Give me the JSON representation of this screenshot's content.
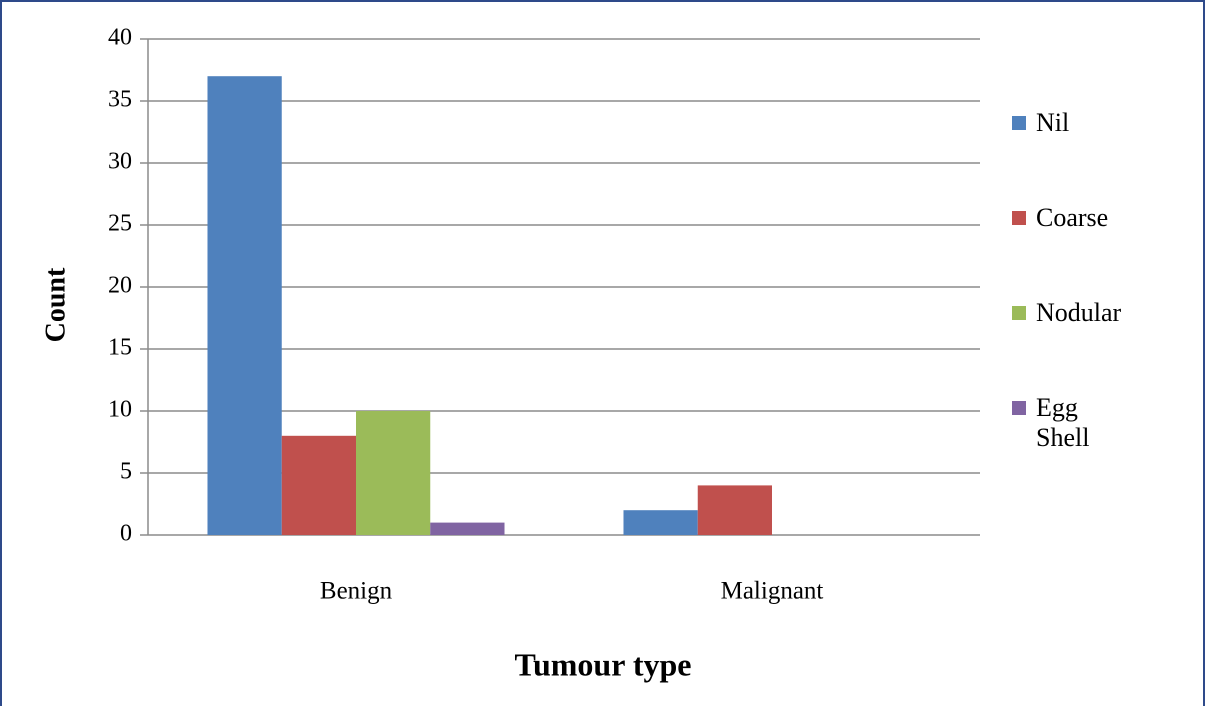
{
  "chart_data": {
    "type": "bar",
    "xlabel": "Tumour type",
    "ylabel": "Count",
    "categories": [
      "Benign",
      "Malignant"
    ],
    "series": [
      {
        "name": "Nil",
        "color": "#4f81bd",
        "values": [
          37,
          2
        ]
      },
      {
        "name": "Coarse",
        "color": "#c0504d",
        "values": [
          8,
          4
        ]
      },
      {
        "name": "Nodular",
        "color": "#9bbb59",
        "values": [
          10,
          0
        ]
      },
      {
        "name": "Egg Shell",
        "color": "#8064a2",
        "values": [
          1,
          0
        ]
      }
    ],
    "ylim": [
      0,
      40
    ],
    "yticks": [
      0,
      5,
      10,
      15,
      20,
      25,
      30,
      35,
      40
    ],
    "grid": true,
    "legend": "right"
  }
}
